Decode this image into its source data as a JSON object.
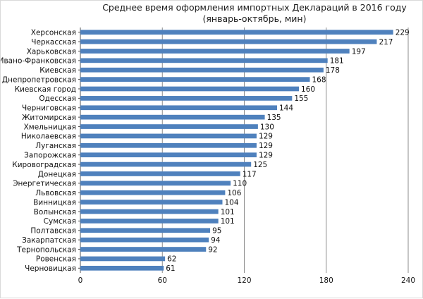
{
  "chart_data": {
    "type": "bar",
    "orientation": "horizontal",
    "title": "Среднее время оформления импортных Деклараций  в 2016 году (январь-октябрь, мин)",
    "xlabel": "",
    "ylabel": "",
    "xlim": [
      0,
      240
    ],
    "xticks": [
      "0",
      "60",
      "120",
      "180",
      "240"
    ],
    "grid": "vertical",
    "legend": "none",
    "bar_color": "#4f81bd",
    "categories": [
      "Херсонская",
      "Черкасская",
      "Харьковская",
      "Ивано-Франковская",
      "Киевская",
      "Днепропетровская",
      "Киевская город",
      "Одесская",
      "Черниговская",
      "Житомирская",
      "Хмельницкая",
      "Николаевская",
      "Луганская",
      "Запорожская",
      "Кировоградская",
      "Донецкая",
      "Энергетическая",
      "Львовская",
      "Винницкая",
      "Волынская",
      "Сумская",
      "Полтавская",
      "Закарпатская",
      "Тернопольская",
      "Ровенская",
      "Черновицкая"
    ],
    "values": [
      229,
      217,
      197,
      181,
      178,
      168,
      160,
      155,
      144,
      135,
      130,
      129,
      129,
      129,
      125,
      117,
      110,
      106,
      104,
      101,
      101,
      95,
      94,
      92,
      62,
      61
    ]
  }
}
